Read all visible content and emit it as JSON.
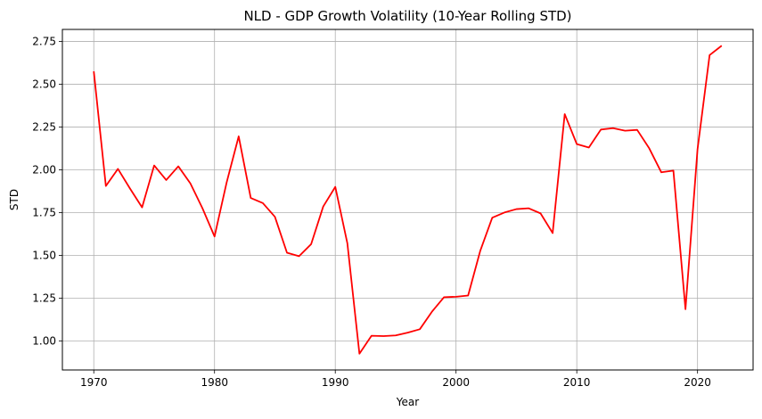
{
  "chart_data": {
    "type": "line",
    "title": "NLD - GDP Growth Volatility (10-Year Rolling STD)",
    "xlabel": "Year",
    "ylabel": "STD",
    "xlim": [
      1967.4,
      2024.6
    ],
    "ylim": [
      0.83,
      2.82
    ],
    "xticks": [
      1970,
      1980,
      1990,
      2000,
      2010,
      2020
    ],
    "yticks": [
      1.0,
      1.25,
      1.5,
      1.75,
      2.0,
      2.25,
      2.5,
      2.75
    ],
    "ytick_labels": [
      "1.00",
      "1.25",
      "1.50",
      "1.75",
      "2.00",
      "2.25",
      "2.50",
      "2.75"
    ],
    "grid": true,
    "series": [
      {
        "color": "#ff0000",
        "x": [
          1970,
          1971,
          1972,
          1973,
          1974,
          1975,
          1976,
          1977,
          1978,
          1979,
          1980,
          1981,
          1982,
          1983,
          1984,
          1985,
          1986,
          1987,
          1988,
          1989,
          1990,
          1991,
          1992,
          1993,
          1994,
          1995,
          1996,
          1997,
          1998,
          1999,
          2000,
          2001,
          2002,
          2003,
          2004,
          2005,
          2006,
          2007,
          2008,
          2009,
          2010,
          2011,
          2012,
          2013,
          2014,
          2015,
          2016,
          2017,
          2018,
          2019,
          2020,
          2021,
          2022
        ],
        "values": [
          2.575,
          1.905,
          2.005,
          1.89,
          1.78,
          2.025,
          1.94,
          2.02,
          1.92,
          1.775,
          1.61,
          1.925,
          2.195,
          1.835,
          1.805,
          1.725,
          1.515,
          1.495,
          1.565,
          1.785,
          1.9,
          1.57,
          0.925,
          1.03,
          1.028,
          1.032,
          1.048,
          1.068,
          1.17,
          1.255,
          1.258,
          1.265,
          1.525,
          1.72,
          1.75,
          1.77,
          1.775,
          1.745,
          1.63,
          2.325,
          2.15,
          2.13,
          2.235,
          2.243,
          2.228,
          2.233,
          2.125,
          1.985,
          1.995,
          1.185,
          2.12,
          2.67,
          2.725
        ]
      }
    ]
  }
}
